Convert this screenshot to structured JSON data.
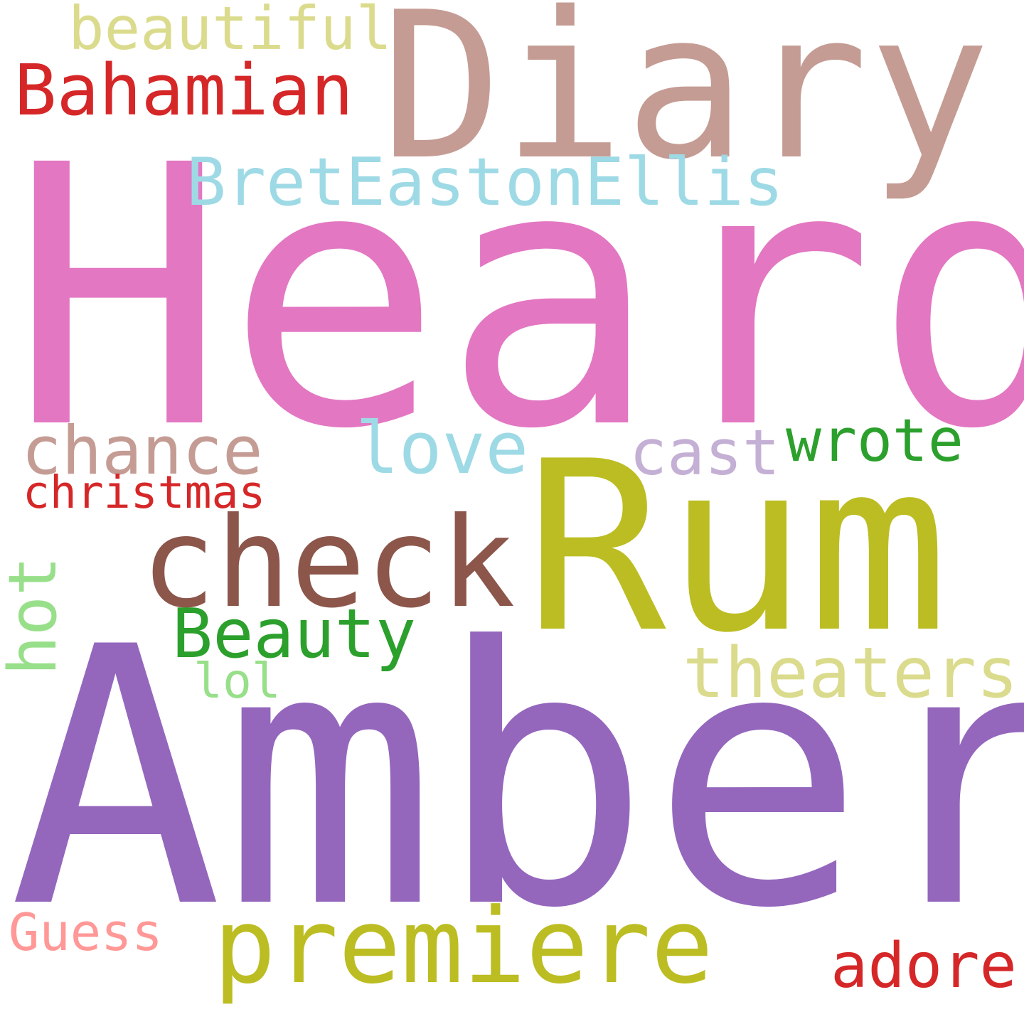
{
  "words": [
    {
      "text": "Heard",
      "color": "#e377c2"
    },
    {
      "text": "Amber",
      "color": "#9467bd"
    },
    {
      "text": "Diary",
      "color": "#c49c94"
    },
    {
      "text": "Rum",
      "color": "#bcbd22"
    },
    {
      "text": "check",
      "color": "#8c564b"
    },
    {
      "text": "BretEastonEllis",
      "color": "#9edae5"
    },
    {
      "text": "premiere",
      "color": "#bcbd22"
    },
    {
      "text": "Bahamian",
      "color": "#d62728"
    },
    {
      "text": "beautiful",
      "color": "#dbdb8d"
    },
    {
      "text": "chance",
      "color": "#c49c94"
    },
    {
      "text": "love",
      "color": "#9edae5"
    },
    {
      "text": "cast",
      "color": "#c5b0d5"
    },
    {
      "text": "wrote",
      "color": "#2ca02c"
    },
    {
      "text": "christmas",
      "color": "#d62728"
    },
    {
      "text": "Beauty",
      "color": "#2ca02c"
    },
    {
      "text": "theaters",
      "color": "#dbdb8d"
    },
    {
      "text": "hot",
      "color": "#98df8a"
    },
    {
      "text": "lol",
      "color": "#98df8a"
    },
    {
      "text": "Guess",
      "color": "#ff9896"
    },
    {
      "text": "adore",
      "color": "#d62728"
    }
  ]
}
